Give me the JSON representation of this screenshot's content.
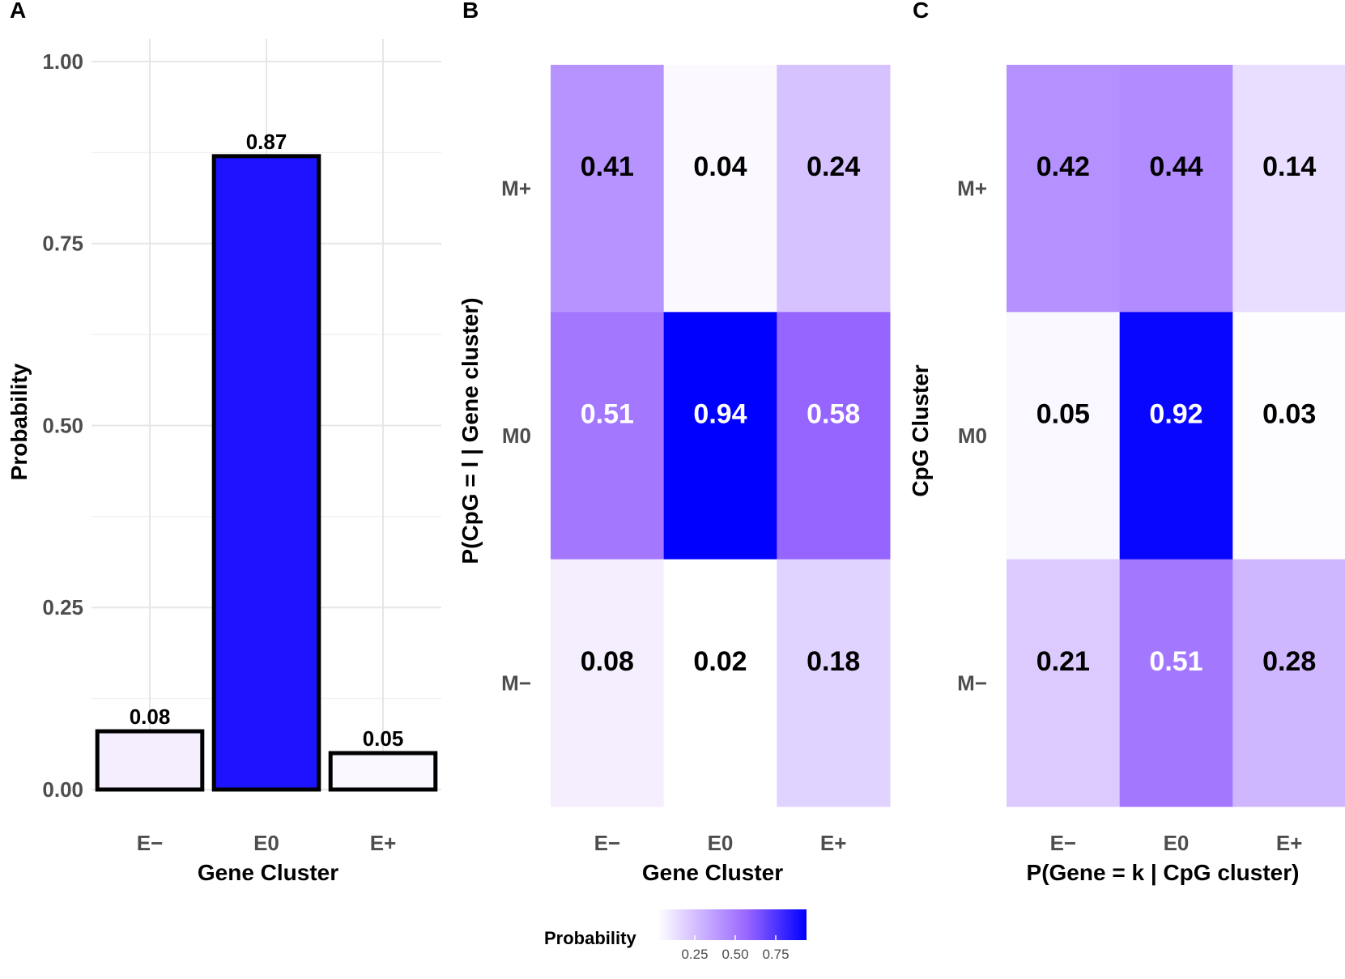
{
  "colors": {
    "low": "#ffffff",
    "high": "#0000ff",
    "purple": "#9966ff",
    "bar_outline": "#000000",
    "text_dark": "#000000",
    "text_light": "#ffffff"
  },
  "chart_data": [
    {
      "id": "A",
      "panel_letter": "A",
      "type": "bar",
      "categories": [
        "E−",
        "E0",
        "E+"
      ],
      "values": [
        0.08,
        0.87,
        0.05
      ],
      "value_labels": [
        "0.08",
        "0.87",
        "0.05"
      ],
      "xlabel": "Gene Cluster",
      "ylabel": "Probability",
      "ylim": [
        0,
        1.04
      ],
      "yticks": [
        0,
        0.25,
        0.5,
        0.75,
        1.0
      ],
      "ytick_labels": [
        "0.00",
        "0.25",
        "0.50",
        "0.75",
        "1.00"
      ],
      "grid": true
    },
    {
      "id": "B",
      "panel_letter": "B",
      "type": "heatmap",
      "x_categories": [
        "E−",
        "E0",
        "E+"
      ],
      "y_categories": [
        "M+",
        "M0",
        "M−"
      ],
      "values": [
        [
          0.41,
          0.04,
          0.24
        ],
        [
          0.51,
          0.94,
          0.58
        ],
        [
          0.08,
          0.02,
          0.18
        ]
      ],
      "value_labels": [
        [
          "0.41",
          "0.04",
          "0.24"
        ],
        [
          "0.51",
          "0.94",
          "0.58"
        ],
        [
          "0.08",
          "0.02",
          "0.18"
        ]
      ],
      "xlabel": "Gene Cluster",
      "ylabel": "P(CpG = l | Gene cluster)"
    },
    {
      "id": "C",
      "panel_letter": "C",
      "type": "heatmap",
      "x_categories": [
        "E−",
        "E0",
        "E+"
      ],
      "y_categories": [
        "M+",
        "M0",
        "M−"
      ],
      "values": [
        [
          0.42,
          0.44,
          0.14
        ],
        [
          0.05,
          0.92,
          0.03
        ],
        [
          0.21,
          0.51,
          0.28
        ]
      ],
      "value_labels": [
        [
          "0.42",
          "0.44",
          "0.14"
        ],
        [
          "0.05",
          "0.92",
          "0.03"
        ],
        [
          "0.21",
          "0.51",
          "0.28"
        ]
      ],
      "xlabel": "P(Gene = k | CpG cluster)",
      "ylabel": "CpG Cluster"
    }
  ],
  "legend": {
    "title": "Probability",
    "range": [
      0.02,
      0.94
    ],
    "ticks": [
      0.25,
      0.5,
      0.75
    ],
    "tick_labels": [
      "0.25",
      "0.50",
      "0.75"
    ],
    "placement": "bottom-center"
  }
}
